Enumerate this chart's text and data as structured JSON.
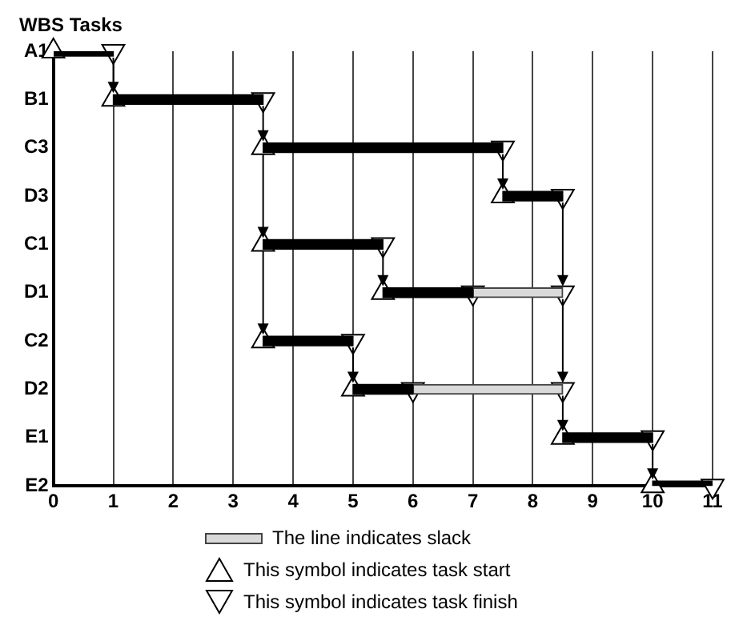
{
  "chart_data": {
    "type": "bar",
    "orientation": "horizontal",
    "ylabel": "WBS Tasks",
    "categories": [
      "A1",
      "B1",
      "C3",
      "D3",
      "C1",
      "D1",
      "C2",
      "D2",
      "E1",
      "E2"
    ],
    "xlim": [
      0,
      11
    ],
    "xticks": [
      0,
      1,
      2,
      3,
      4,
      5,
      6,
      7,
      8,
      9,
      10,
      11
    ],
    "grid": "x",
    "legend": "bottom",
    "series": [
      {
        "color": "#000000",
        "base": [
          0,
          1,
          3.5,
          7.5,
          3.5,
          5.5,
          3.5,
          5,
          8.5,
          10
        ],
        "values": [
          1,
          2.5,
          4,
          1,
          2,
          1.5,
          1.5,
          1,
          1.5,
          1
        ]
      },
      {
        "name": "The line indicates slack",
        "color": "#d9d9d9",
        "base": [
          null,
          null,
          null,
          null,
          null,
          7,
          null,
          6,
          null,
          null
        ],
        "values": [
          null,
          null,
          null,
          null,
          null,
          1.5,
          null,
          2.5,
          null,
          null
        ]
      },
      {
        "type": "scatter",
        "name": "This symbol indicates task start",
        "color": "#ffffff",
        "marker": "triangle",
        "values": [
          0,
          1,
          3.5,
          7.5,
          3.5,
          5.5,
          3.5,
          5,
          8.5,
          10
        ]
      },
      {
        "type": "scatter",
        "name": "This symbol indicates task finish",
        "color": "#ffffff",
        "marker": "triangle",
        "values": [
          1,
          3.5,
          7.5,
          8.5,
          5.5,
          7,
          5,
          6,
          10,
          11
        ]
      },
      {
        "type": "scatter",
        "color": "#ffffff",
        "marker": "triangle",
        "values": [
          null,
          null,
          null,
          null,
          null,
          8.5,
          null,
          8.5,
          null,
          null
        ]
      }
    ]
  }
}
